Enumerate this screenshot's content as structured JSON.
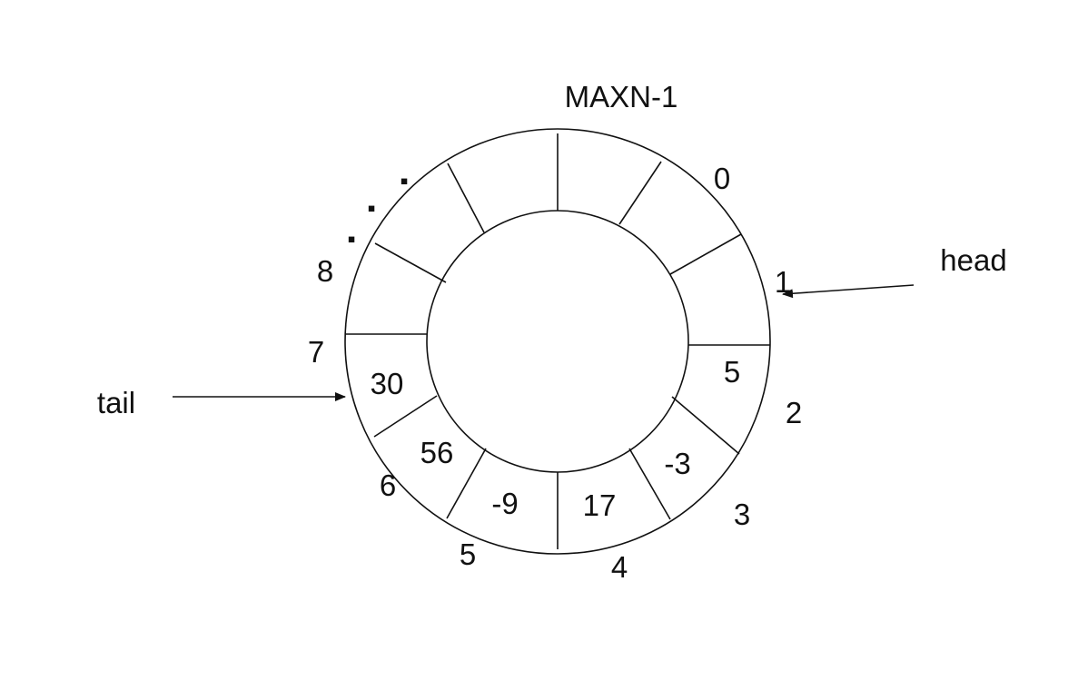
{
  "title_label": "MAXN-1",
  "pointers": {
    "head": "head",
    "tail": "tail"
  },
  "slot_indices": {
    "i0": "0",
    "i1": "1",
    "i2": "2",
    "i3": "3",
    "i4": "4",
    "i5": "5",
    "i6": "6",
    "i7": "7",
    "i8": "8"
  },
  "cell_values": {
    "v2": "5",
    "v3": "-3",
    "v4": "17",
    "v5": "-9",
    "v6": "56",
    "v7": "30"
  },
  "ellipsis_glyph": "▪",
  "colors": {
    "ink": "#111111",
    "background": "#ffffff"
  }
}
